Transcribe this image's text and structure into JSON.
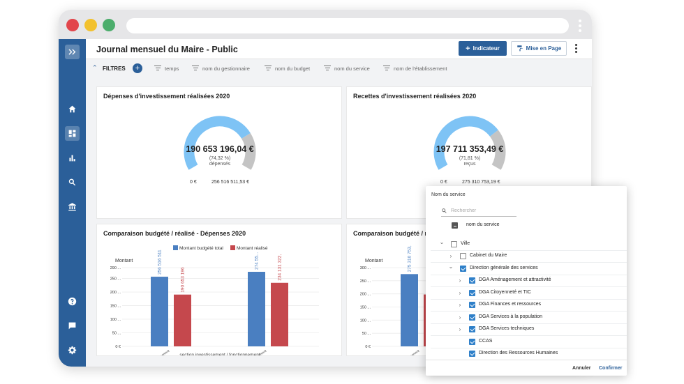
{
  "colors": {
    "brand": "#2b5f99",
    "gauge_fill": "#7ec3f5",
    "gauge_rest": "#c4c4c4",
    "bar_budget": "#4a7fc1",
    "bar_realise": "#c5484d",
    "dot_red": "#e2464c",
    "dot_yellow": "#f2c12e",
    "dot_green": "#4cad6c"
  },
  "browser": {
    "dots": [
      "close-dot",
      "minimize-dot",
      "maximize-dot"
    ]
  },
  "sidebar": {
    "items": [
      {
        "name": "expand",
        "icon": "double-chevron-right-icon"
      },
      {
        "name": "home",
        "icon": "home-icon"
      },
      {
        "name": "dashboard",
        "icon": "dashboard-icon",
        "active": true
      },
      {
        "name": "charts",
        "icon": "bar-chart-icon"
      },
      {
        "name": "search",
        "icon": "search-icon"
      },
      {
        "name": "institution",
        "icon": "bank-icon"
      },
      {
        "name": "help",
        "icon": "help-icon"
      },
      {
        "name": "messages",
        "icon": "chat-icon"
      },
      {
        "name": "settings",
        "icon": "gear-icon"
      }
    ]
  },
  "header": {
    "title": "Journal mensuel du Maire - Public",
    "indicator_button": "Indicateur",
    "layout_button": "Mise en Page"
  },
  "filters": {
    "label": "FILTRES",
    "chips": [
      "temps",
      "nom du gestionnaire",
      "nom du budget",
      "nom du service",
      "nom de l'établissement"
    ]
  },
  "cards": {
    "depenses": {
      "title": "Dépenses d'investissement réalisées 2020",
      "value": "190 653 196,04 €",
      "percent": "(74,32 %)",
      "caption": "dépensés",
      "min": "0 €",
      "max": "256 516 511,53 €",
      "ratio": 0.7432
    },
    "recettes": {
      "title": "Recettes d'investissement réalisées 2020",
      "value": "197 711 353,49 €",
      "percent": "(71,81 %)",
      "caption": "reçus",
      "min": "0 €",
      "max": "275 310 753,19 €",
      "ratio": 0.7181
    },
    "comparaison_left": {
      "title": "Comparaison budgété / réalisé - Dépenses 2020"
    },
    "comparaison_right": {
      "title": "Comparaison budgété / réalisé - Recettes 2020"
    }
  },
  "chart_data": [
    {
      "type": "bar",
      "ylabel": "Montant",
      "xlabel": "section investissement / fonctionnement",
      "categories": [
        "Investissement",
        "Fonctionnement"
      ],
      "yticks": [
        "0 €",
        "50 ...",
        "100 ...",
        "150 ...",
        "200 ...",
        "250 ...",
        "290 ..."
      ],
      "ytick_values": [
        0,
        50,
        100,
        150,
        200,
        250,
        290
      ],
      "ylim": [
        0,
        290
      ],
      "series": [
        {
          "name": "Montant budgété total",
          "values": [
            256.5,
            274.6
          ],
          "labels": [
            "256 516 511",
            "274 55..."
          ]
        },
        {
          "name": "Montant réalisé",
          "values": [
            190.7,
            234.1
          ],
          "labels": [
            "190 653 196",
            "234 131 322,"
          ]
        }
      ],
      "legend": "top"
    },
    {
      "type": "bar",
      "ylabel": "Montant",
      "categories": [
        "Investissement",
        "Fonctionnement"
      ],
      "yticks": [
        "0 €",
        "50 ...",
        "100 ...",
        "150 ...",
        "200 ...",
        "250 ...",
        "300 ..."
      ],
      "ytick_values": [
        0,
        50,
        100,
        150,
        200,
        250,
        300
      ],
      "ylim": [
        0,
        300
      ],
      "series": [
        {
          "name": "Montant budgété total",
          "values": [
            275.3,
            0
          ],
          "labels": [
            "275 310 753,",
            ""
          ]
        },
        {
          "name": "Montant réalisé",
          "values": [
            197.7,
            0
          ],
          "labels": [
            "",
            ""
          ]
        }
      ]
    }
  ],
  "service_picker": {
    "title": "Nom du service",
    "search_placeholder": "Rechercher",
    "rows": [
      {
        "label": "nom du service",
        "state": "indet",
        "level": 0,
        "chevron": ""
      },
      {
        "label": "Ville",
        "state": "empty",
        "level": 0,
        "chevron": "down"
      },
      {
        "label": "Cabinet du Maire",
        "state": "empty",
        "level": 1,
        "chevron": "right"
      },
      {
        "label": "Direction générale des services",
        "state": "checked",
        "level": 1,
        "chevron": "down"
      },
      {
        "label": "DGA Aménagement et attractivité",
        "state": "checked",
        "level": 2,
        "chevron": "right"
      },
      {
        "label": "DGA Citoyenneté et TIC",
        "state": "checked",
        "level": 2,
        "chevron": "right"
      },
      {
        "label": "DGA Finances et ressources",
        "state": "checked",
        "level": 2,
        "chevron": "right"
      },
      {
        "label": "DGA Services à la population",
        "state": "checked",
        "level": 2,
        "chevron": "right"
      },
      {
        "label": "DGA Services techniques",
        "state": "checked",
        "level": 2,
        "chevron": "right"
      },
      {
        "label": "CCAS",
        "state": "checked",
        "level": 2,
        "chevron": ""
      },
      {
        "label": "Direction des Ressources Humaines",
        "state": "checked",
        "level": 2,
        "chevron": ""
      }
    ],
    "cancel": "Annuler",
    "confirm": "Confirmer"
  }
}
